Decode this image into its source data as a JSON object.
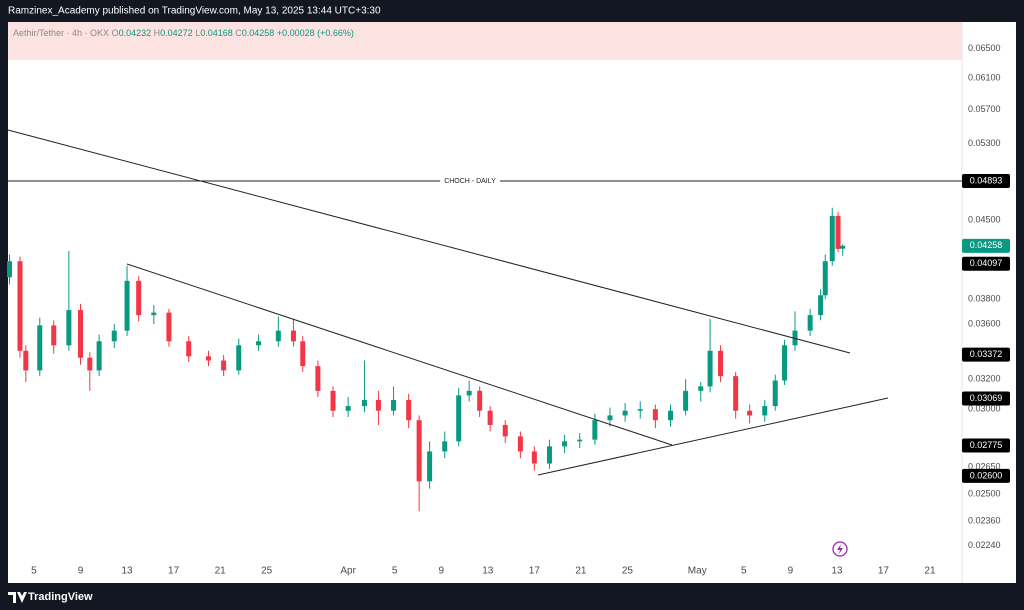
{
  "header": {
    "title": "Ramzinex_Academy published on TradingView.com, May 13, 2025 13:44 UTC+3:30"
  },
  "legend": {
    "symbol": "Aethir/Tether · 4h · OKX",
    "o_label": "O",
    "open": "0.04232",
    "h_label": "H",
    "high": "0.04272",
    "l_label": "L",
    "low": "0.04168",
    "c_label": "C",
    "close": "0.04258",
    "change": "+0.00028 (+0.66%)"
  },
  "chart_data": {
    "type": "candlestick",
    "log_scale": true,
    "grid": false,
    "up_color": "#089981",
    "down_color": "#f23645",
    "x": [
      2.9,
      3.8,
      4.3,
      5.5,
      6.7,
      8.0,
      9.0,
      9.8,
      10.6,
      11.9,
      13.0,
      14.0,
      15.3,
      16.6,
      18.3,
      20.0,
      21.3,
      22.6,
      24.3,
      26.0,
      27.3,
      28.1,
      29.4,
      30.7,
      32.0,
      33.4,
      34.6,
      35.9,
      37.2,
      38.1,
      39.0,
      40.3,
      41.5,
      42.4,
      43.3,
      44.2,
      45.5,
      46.8,
      48.0,
      49.3,
      50.6,
      51.9,
      53.2,
      54.5,
      55.8,
      57.1,
      58.4,
      59.7,
      61.0,
      62.3,
      63.1,
      64.0,
      65.3,
      66.5,
      67.8,
      68.7,
      69.5,
      70.4,
      71.7,
      72.6,
      73.0,
      73.6,
      74.1,
      74.5
    ],
    "open": [
      0.0398,
      0.0412,
      0.034,
      0.0326,
      0.0359,
      0.0344,
      0.0371,
      0.0335,
      0.0326,
      0.0347,
      0.0355,
      0.0395,
      0.0367,
      0.0369,
      0.0347,
      0.0336,
      0.0333,
      0.0326,
      0.0344,
      0.0347,
      0.0355,
      0.0347,
      0.0329,
      0.0312,
      0.0299,
      0.0302,
      0.0306,
      0.0299,
      0.0306,
      0.0293,
      0.0257,
      0.0274,
      0.028,
      0.0309,
      0.0312,
      0.0299,
      0.029,
      0.0283,
      0.0274,
      0.0267,
      0.0277,
      0.028,
      0.0281,
      0.0293,
      0.0296,
      0.0299,
      0.03,
      0.0293,
      0.0299,
      0.0312,
      0.0315,
      0.034,
      0.0322,
      0.0299,
      0.0296,
      0.0302,
      0.0319,
      0.0344,
      0.0355,
      0.0367,
      0.0383,
      0.0412,
      0.0454,
      0.04232
    ],
    "high": [
      0.0418,
      0.0416,
      0.0344,
      0.0365,
      0.0363,
      0.0421,
      0.0376,
      0.0339,
      0.0352,
      0.036,
      0.0408,
      0.0399,
      0.0375,
      0.0372,
      0.0351,
      0.034,
      0.0337,
      0.0349,
      0.0352,
      0.0366,
      0.0364,
      0.0351,
      0.0333,
      0.0315,
      0.0308,
      0.0333,
      0.0312,
      0.0315,
      0.031,
      0.0296,
      0.028,
      0.0286,
      0.0314,
      0.0319,
      0.0315,
      0.0302,
      0.0293,
      0.0286,
      0.0277,
      0.0281,
      0.0284,
      0.0285,
      0.0297,
      0.0301,
      0.0304,
      0.0305,
      0.0303,
      0.0303,
      0.032,
      0.0318,
      0.0364,
      0.0344,
      0.0325,
      0.0303,
      0.0306,
      0.0323,
      0.0348,
      0.037,
      0.0372,
      0.0388,
      0.0418,
      0.0462,
      0.0458,
      0.04272
    ],
    "low": [
      0.0392,
      0.0335,
      0.0318,
      0.0322,
      0.0338,
      0.034,
      0.033,
      0.0312,
      0.0322,
      0.0342,
      0.0351,
      0.0362,
      0.036,
      0.0343,
      0.0332,
      0.0329,
      0.0322,
      0.0323,
      0.034,
      0.0343,
      0.0343,
      0.0325,
      0.0308,
      0.0295,
      0.0295,
      0.0298,
      0.029,
      0.0296,
      0.0288,
      0.0241,
      0.0253,
      0.027,
      0.0277,
      0.0305,
      0.0295,
      0.0286,
      0.0279,
      0.027,
      0.0263,
      0.0264,
      0.0273,
      0.0276,
      0.0278,
      0.0289,
      0.0292,
      0.0294,
      0.0288,
      0.0289,
      0.0296,
      0.0305,
      0.0311,
      0.0318,
      0.0294,
      0.0291,
      0.0292,
      0.0299,
      0.0316,
      0.034,
      0.0351,
      0.0363,
      0.038,
      0.0408,
      0.042,
      0.04168
    ],
    "close": [
      0.0412,
      0.034,
      0.0326,
      0.0359,
      0.0344,
      0.0371,
      0.0335,
      0.0326,
      0.0347,
      0.0355,
      0.0395,
      0.0367,
      0.0369,
      0.0347,
      0.0336,
      0.0333,
      0.0326,
      0.0344,
      0.0347,
      0.0355,
      0.0347,
      0.0329,
      0.0312,
      0.0299,
      0.0302,
      0.0306,
      0.0299,
      0.0306,
      0.0293,
      0.0257,
      0.0274,
      0.028,
      0.0309,
      0.0312,
      0.0299,
      0.029,
      0.0283,
      0.0274,
      0.0267,
      0.0277,
      0.028,
      0.0281,
      0.0293,
      0.0296,
      0.0299,
      0.03,
      0.0293,
      0.0299,
      0.0312,
      0.0315,
      0.034,
      0.0322,
      0.0299,
      0.0296,
      0.0302,
      0.0319,
      0.0344,
      0.0355,
      0.0367,
      0.0383,
      0.0412,
      0.0454,
      0.0423,
      0.04258
    ],
    "xlim": [
      2.77,
      84.75
    ],
    "xticks": [
      5,
      9,
      13,
      17,
      21,
      25,
      {
        "value": 32,
        "label": "Apr"
      },
      {
        "value": 36,
        "label": "5"
      },
      {
        "value": 40,
        "label": "9"
      },
      {
        "value": 44,
        "label": "13"
      },
      {
        "value": 48,
        "label": "17"
      },
      {
        "value": 52,
        "label": "21"
      },
      {
        "value": 56,
        "label": "25"
      },
      {
        "value": 62,
        "label": "May"
      },
      {
        "value": 66,
        "label": "5"
      },
      {
        "value": 70,
        "label": "9"
      },
      {
        "value": 74,
        "label": "13"
      },
      {
        "value": 78,
        "label": "17"
      },
      {
        "value": 82,
        "label": "21"
      }
    ],
    "ylim": [
      0.0208,
      0.0688
    ],
    "yticks": [
      {
        "value": 0.065,
        "label": "0.06500"
      },
      {
        "value": 0.061,
        "label": "0.06100"
      },
      {
        "value": 0.057,
        "label": "0.05700"
      },
      {
        "value": 0.053,
        "label": "0.05300"
      },
      {
        "value": 0.045,
        "label": "0.04500"
      },
      {
        "value": 0.038,
        "label": "0.03800"
      },
      {
        "value": 0.036,
        "label": "0.03600"
      },
      {
        "value": 0.032,
        "label": "0.03200"
      },
      {
        "value": 0.03,
        "label": "0.03000"
      },
      {
        "value": 0.0265,
        "label": "0.02650"
      },
      {
        "value": 0.025,
        "label": "0.02500"
      },
      {
        "value": 0.0236,
        "label": "0.02360"
      },
      {
        "value": 0.0224,
        "label": "0.02240"
      }
    ],
    "annotations": [
      {
        "text": "CHOCH - DAILY",
        "value": 0.04893,
        "label": "0.04893"
      }
    ],
    "price_labels": [
      {
        "value": 0.04258,
        "label": "0.04258",
        "color": "#089981"
      },
      {
        "value": 0.04097,
        "label": "0.04097",
        "color": "#000000"
      },
      {
        "value": 0.03372,
        "label": "0.03372",
        "color": "#000000"
      },
      {
        "value": 0.03069,
        "label": "0.03069",
        "color": "#000000"
      },
      {
        "value": 0.02775,
        "label": "0.02775",
        "color": "#000000"
      },
      {
        "value": 0.026,
        "label": "0.02600",
        "color": "#000000"
      }
    ]
  },
  "footer": {
    "brand": "TradingView"
  }
}
